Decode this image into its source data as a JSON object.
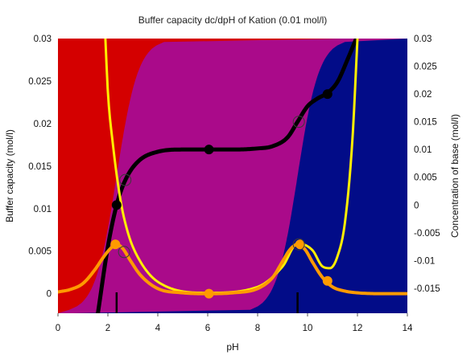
{
  "chart_data": {
    "type": "line",
    "title": "Buffer capacity dc/dpH of Kation (0.01 mol/l)",
    "xlabel": "pH",
    "ylabel": "Buffer capacity (mol/l)",
    "y2label": "Concentration of base (mol/l)",
    "xlim": [
      0,
      14
    ],
    "ylim": [
      -0.0023,
      0.03
    ],
    "y2lim": [
      -0.0195,
      0.03
    ],
    "x_ticks": [
      "0",
      "2",
      "4",
      "6",
      "8",
      "10",
      "12",
      "14"
    ],
    "y_ticks": [
      "0",
      "0.005",
      "0.01",
      "0.015",
      "0.02",
      "0.025",
      "0.03"
    ],
    "y2_ticks": [
      "-0.015",
      "-0.01",
      "-0.005",
      "0",
      "0.005",
      "0.01",
      "0.015",
      "0.02",
      "0.025",
      "0.03"
    ],
    "pKa": [
      2.35,
      9.6
    ],
    "background_regions": [
      {
        "name": "cation",
        "color": "#d40000"
      },
      {
        "name": "zwitterion",
        "color": "#aa0a8a"
      },
      {
        "name": "anion",
        "color": "#020c88"
      }
    ],
    "series": [
      {
        "role": "titration",
        "axis": "right",
        "color": "#000000",
        "x": [
          1.6,
          2.0,
          2.35,
          2.7,
          3.2,
          4.0,
          5.0,
          6.0,
          7.0,
          8.0,
          8.6,
          9.2,
          9.6,
          10.0,
          10.4,
          10.8,
          11.2,
          11.6,
          11.95
        ],
        "y": [
          -0.0195,
          -0.0075,
          0.0,
          0.0045,
          0.0078,
          0.0096,
          0.01,
          0.01,
          0.01,
          0.0102,
          0.0106,
          0.0122,
          0.015,
          0.0178,
          0.0192,
          0.0202,
          0.0222,
          0.0262,
          0.03
        ]
      },
      {
        "role": "buffer-capacity-total",
        "axis": "left",
        "color": "#ffee00",
        "x": [
          1.9,
          2.0,
          2.2,
          2.5,
          2.8,
          3.2,
          4.0,
          6.0,
          8.0,
          9.0,
          9.6,
          10.2,
          10.6,
          10.9,
          11.2,
          11.5,
          11.8,
          12.0
        ],
        "y": [
          0.03,
          0.0237,
          0.0176,
          0.0111,
          0.0072,
          0.0043,
          0.0014,
          0.0001,
          0.0008,
          0.0032,
          0.0059,
          0.0051,
          0.0032,
          0.003,
          0.0044,
          0.0084,
          0.0182,
          0.03
        ]
      },
      {
        "role": "buffer-capacity-acid",
        "axis": "left",
        "color": "#ff9a00",
        "x": [
          0.0,
          0.5,
          1.0,
          1.5,
          1.8,
          2.1,
          2.35,
          2.6,
          2.9,
          3.3,
          4.0,
          5.0,
          6.0,
          7.0,
          8.0,
          8.6,
          9.0,
          9.3,
          9.6,
          9.9,
          10.2,
          10.6,
          11.0,
          11.5,
          12.0,
          13.0,
          14.0
        ],
        "y": [
          0.0002,
          0.0005,
          0.0012,
          0.0029,
          0.0042,
          0.0053,
          0.0058,
          0.0053,
          0.0039,
          0.0022,
          0.0006,
          0.0001,
          0.0,
          0.0001,
          0.0006,
          0.0019,
          0.0038,
          0.0052,
          0.0058,
          0.0052,
          0.0037,
          0.0019,
          0.0008,
          0.0003,
          0.0001,
          0.0,
          0.0
        ]
      }
    ],
    "filled_points": [
      {
        "series": "titration",
        "x": 2.35,
        "y2": 0.0
      },
      {
        "series": "titration",
        "x": 6.05,
        "y2": 0.01
      },
      {
        "series": "titration",
        "x": 10.8,
        "y2": 0.02
      },
      {
        "series": "buffer-capacity-acid",
        "x": 2.3,
        "y": 0.0058
      },
      {
        "series": "buffer-capacity-acid",
        "x": 6.05,
        "y": 0.0
      },
      {
        "series": "buffer-capacity-acid",
        "x": 9.7,
        "y": 0.0058
      },
      {
        "series": "buffer-capacity-acid",
        "x": 10.8,
        "y": 0.0015
      }
    ],
    "open_points": [
      {
        "x": 2.7,
        "y2": 0.0045
      },
      {
        "x": 9.65,
        "y2": 0.015
      },
      {
        "x": 2.65,
        "y": 0.0049
      },
      {
        "x": 9.65,
        "y": 0.0058
      }
    ],
    "vertical_ticks": [
      2.35,
      9.6
    ],
    "grid": false
  }
}
